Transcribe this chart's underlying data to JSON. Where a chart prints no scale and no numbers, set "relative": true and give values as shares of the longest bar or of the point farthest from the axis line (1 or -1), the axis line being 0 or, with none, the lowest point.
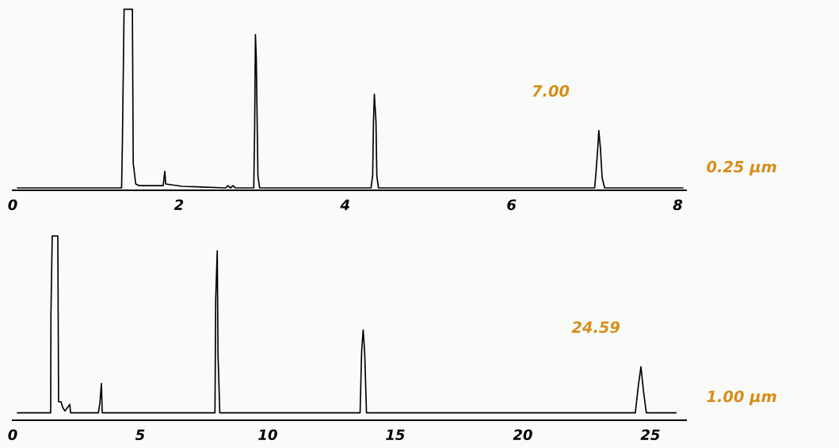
{
  "chart_data": [
    {
      "type": "line",
      "relative": true,
      "tick_labels": "x",
      "grid": false,
      "legend": false,
      "xlim": [
        0,
        8.1
      ],
      "xticks": [
        0,
        2,
        4,
        6,
        8
      ],
      "x": [
        0.06,
        1.31,
        1.32,
        1.34,
        1.44,
        1.45,
        1.48,
        1.52,
        1.81,
        1.83,
        1.84,
        2.04,
        2.56,
        2.59,
        2.62,
        2.65,
        2.68,
        2.9,
        2.91,
        2.92,
        2.93,
        2.95,
        2.97,
        4.31,
        4.33,
        4.34,
        4.35,
        4.37,
        4.38,
        4.4,
        7.0,
        7.02,
        7.04,
        7.05,
        7.07,
        7.09,
        7.12,
        8.06
      ],
      "series": [
        {
          "color": "#000000",
          "values": [
            0.013,
            0.013,
            0.27,
            1.0,
            1.0,
            0.15,
            0.035,
            0.026,
            0.026,
            0.105,
            0.035,
            0.022,
            0.013,
            0.026,
            0.013,
            0.026,
            0.013,
            0.013,
            0.32,
            0.86,
            0.73,
            0.08,
            0.013,
            0.013,
            0.08,
            0.38,
            0.53,
            0.38,
            0.08,
            0.013,
            0.013,
            0.12,
            0.25,
            0.33,
            0.23,
            0.07,
            0.013,
            0.013
          ]
        }
      ],
      "annotations": [
        {
          "text": "7.00",
          "x": 7.0,
          "y": 0.33
        },
        "0.25 µm"
      ]
    },
    {
      "type": "line",
      "relative": true,
      "tick_labels": "x",
      "grid": false,
      "legend": false,
      "xlim": [
        0,
        26.4
      ],
      "xticks": [
        0,
        5,
        10,
        15,
        20,
        25
      ],
      "x": [
        0.19,
        1.49,
        1.5,
        1.55,
        1.77,
        1.8,
        1.9,
        1.96,
        2.05,
        2.24,
        2.27,
        3.36,
        3.42,
        3.48,
        3.51,
        7.93,
        7.96,
        8.02,
        8.05,
        8.12,
        13.62,
        13.68,
        13.74,
        13.8,
        13.87,
        24.41,
        24.53,
        24.63,
        24.72,
        24.84,
        26.0
      ],
      "series": [
        {
          "color": "#000000",
          "values": [
            0.04,
            0.04,
            0.57,
            1.0,
            1.0,
            0.1,
            0.1,
            0.07,
            0.05,
            0.086,
            0.04,
            0.04,
            0.095,
            0.2,
            0.04,
            0.04,
            0.66,
            0.92,
            0.36,
            0.04,
            0.04,
            0.37,
            0.49,
            0.37,
            0.04,
            0.04,
            0.19,
            0.29,
            0.17,
            0.04,
            0.04
          ]
        }
      ],
      "annotations": [
        {
          "text": "24.59",
          "x": 24.59,
          "y": 0.29
        },
        "1.00 µm"
      ]
    }
  ]
}
